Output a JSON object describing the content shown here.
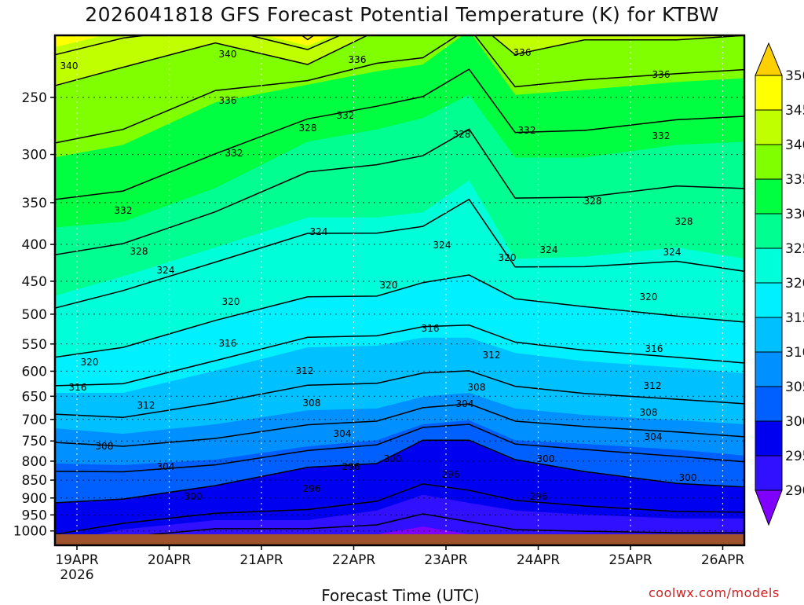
{
  "title": "2026041818 GFS Forecast Potential Temperature (K) for KTBW",
  "credit": "coolwx.com/models",
  "chart_data": {
    "type": "heatmap",
    "subtype": "time-pressure filled contour (isentropes)",
    "title": "2026041818 GFS Forecast Potential Temperature (K) for KTBW",
    "xlabel": "Forecast Time (UTC)",
    "ylabel": "Pressure (hPa)",
    "x_tick_labels": [
      "19APR",
      "20APR",
      "21APR",
      "22APR",
      "23APR",
      "24APR",
      "25APR",
      "26APR"
    ],
    "x_tick_sublabel": "2026",
    "x_range_days_from_19APR00Z": [
      -0.25,
      7.25
    ],
    "y_tick_labels": [
      "250",
      "300",
      "350",
      "400",
      "450",
      "500",
      "550",
      "600",
      "650",
      "700",
      "750",
      "800",
      "850",
      "900",
      "950",
      "1000"
    ],
    "y_range_hPa": [
      1046,
      205
    ],
    "y_scale": "log",
    "surface_pressure_hPa": 1010,
    "grid": true,
    "fill_levels_K": [
      290,
      295,
      300,
      305,
      310,
      315,
      320,
      325,
      330,
      335,
      340,
      345,
      350
    ],
    "fill_colors": [
      "#8000ff",
      "#3010ff",
      "#0000f0",
      "#0060ff",
      "#0090ff",
      "#00c0ff",
      "#00f0ff",
      "#00ffd8",
      "#00ff90",
      "#00ff40",
      "#80ff00",
      "#c0ff00",
      "#ffff00",
      "#ffd000"
    ],
    "colorbar_labels": [
      "350",
      "345",
      "340",
      "335",
      "330",
      "325",
      "320",
      "315",
      "310",
      "305",
      "300",
      "295",
      "290"
    ],
    "contour_interval_K": 4,
    "times_days": [
      -0.25,
      0.5,
      1.5,
      2.5,
      3.25,
      3.75,
      4.25,
      4.75,
      5.5,
      6.5,
      7.25
    ],
    "isentrope_pressure_hPa": [
      [
        1063,
        1037,
        914,
        806,
        720,
        643,
        574,
        472,
        379,
        303,
        241,
        213,
        150
      ],
      [
        1037,
        995,
        903,
        810,
        733,
        643,
        556,
        443,
        372,
        291,
        227,
        202,
        150
      ],
      [
        1011,
        966,
        865,
        796,
        711,
        599,
        510,
        404,
        334,
        254,
        210,
        197,
        150
      ],
      [
        1011,
        966,
        816,
        763,
        680,
        556,
        473,
        367,
        288,
        240,
        225,
        212,
        205
      ],
      [
        1011,
        937,
        806,
        748,
        676,
        553,
        472,
        367,
        277,
        230,
        202,
        193,
        170
      ],
      [
        986,
        891,
        748,
        711,
        651,
        539,
        452,
        361,
        267,
        225,
        202,
        193,
        150
      ],
      [
        1011,
        914,
        748,
        702,
        643,
        539,
        441,
        326,
        248,
        202,
        193,
        188,
        150
      ],
      [
        1037,
        937,
        796,
        748,
        676,
        566,
        476,
        419,
        303,
        248,
        218,
        197,
        150
      ],
      [
        1037,
        949,
        827,
        757,
        690,
        581,
        488,
        416,
        303,
        244,
        208,
        193,
        150
      ],
      [
        1037,
        961,
        859,
        771,
        702,
        593,
        503,
        404,
        291,
        238,
        208,
        193,
        150
      ],
      [
        1037,
        961,
        869,
        786,
        711,
        604,
        513,
        419,
        288,
        235,
        205,
        193,
        150
      ]
    ],
    "contour_labels": [
      "340",
      "340",
      "336",
      "336",
      "336",
      "336",
      "332",
      "328",
      "328",
      "332",
      "332",
      "332",
      "332",
      "328",
      "328",
      "324",
      "324",
      "320",
      "324",
      "324",
      "328",
      "324",
      "320",
      "320",
      "320",
      "316",
      "316",
      "316",
      "312",
      "320",
      "312",
      "312",
      "316",
      "308",
      "308",
      "304",
      "312",
      "308",
      "304",
      "304",
      "308",
      "300",
      "300",
      "296",
      "304",
      "296",
      "300",
      "296",
      "296",
      "300"
    ]
  }
}
